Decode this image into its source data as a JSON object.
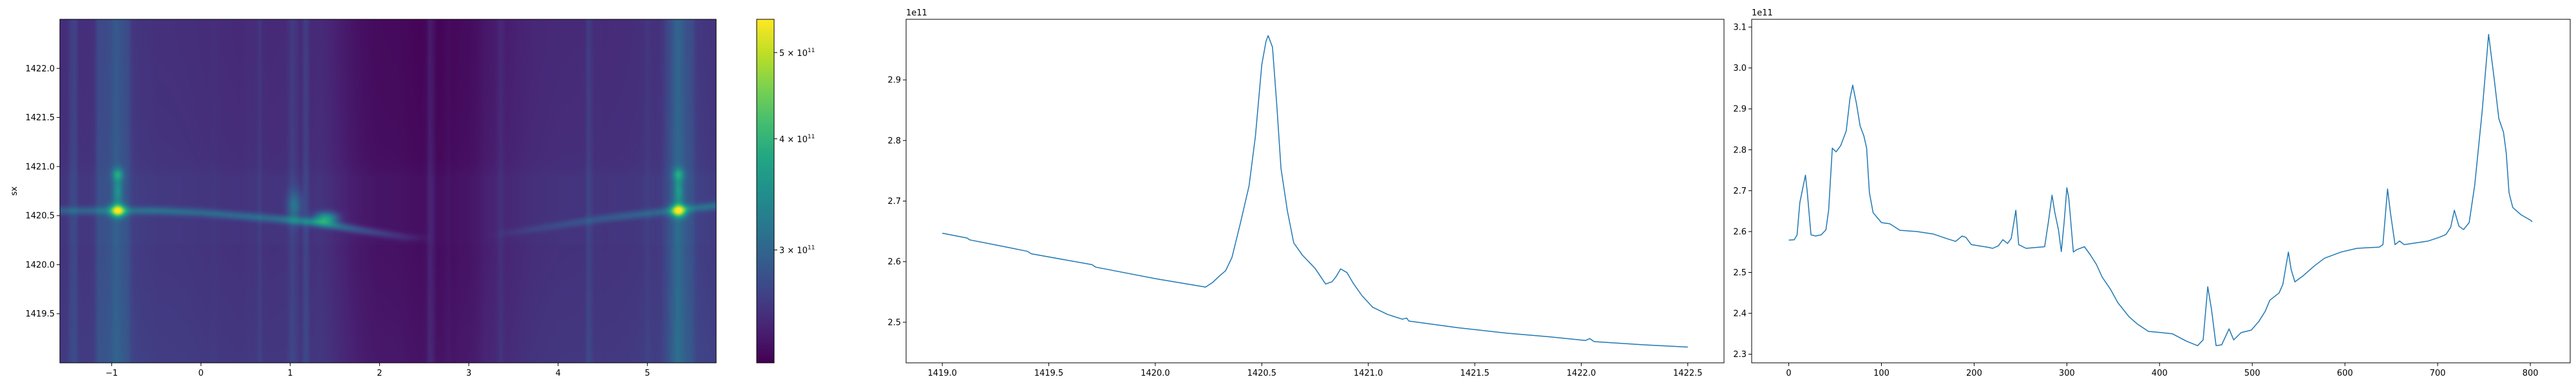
{
  "chart_data": [
    {
      "type": "heatmap",
      "title": "",
      "xlabel": "",
      "ylabel": "sx",
      "xlim": [
        -1.58,
        5.77
      ],
      "ylim": [
        1419.0,
        1422.5
      ],
      "xticks": [
        {
          "value": -1,
          "label": "−1"
        },
        {
          "value": 0,
          "label": "0"
        },
        {
          "value": 1,
          "label": "1"
        },
        {
          "value": 2,
          "label": "2"
        },
        {
          "value": 3,
          "label": "3"
        },
        {
          "value": 4,
          "label": "4"
        },
        {
          "value": 5,
          "label": "5"
        }
      ],
      "yticks": [
        {
          "value": 1419.5,
          "label": "1419.5"
        },
        {
          "value": 1420.0,
          "label": "1420.0"
        },
        {
          "value": 1420.5,
          "label": "1420.5"
        },
        {
          "value": 1421.0,
          "label": "1421.0"
        },
        {
          "value": 1421.5,
          "label": "1421.5"
        },
        {
          "value": 1422.0,
          "label": "1422.0"
        }
      ],
      "colormap": "viridis",
      "color_scale": "log",
      "clim": [
        224000000000.0,
        545000000000.0
      ],
      "colorbar_ticks": [
        {
          "value": 300000000000.0,
          "mantissa": "3 × 10",
          "exponent": "11"
        },
        {
          "value": 400000000000.0,
          "mantissa": "4 × 10",
          "exponent": "11"
        },
        {
          "value": 500000000000.0,
          "mantissa": "5 × 10",
          "exponent": "11"
        }
      ],
      "ridge": [
        {
          "x": -1.58,
          "y": 1420.55,
          "amp": 0.35
        },
        {
          "x": -0.5,
          "y": 1420.55,
          "amp": 0.5
        },
        {
          "x": 0.0,
          "y": 1420.53,
          "amp": 0.45
        },
        {
          "x": 0.8,
          "y": 1420.47,
          "amp": 0.5
        },
        {
          "x": 1.3,
          "y": 1420.43,
          "amp": 0.8
        },
        {
          "x": 1.8,
          "y": 1420.35,
          "amp": 0.4
        },
        {
          "x": 2.3,
          "y": 1420.28,
          "amp": 0.15
        },
        {
          "x": 2.6,
          "y": 1420.27,
          "amp": 0.0
        },
        {
          "x": 3.2,
          "y": 1420.3,
          "amp": 0.0
        },
        {
          "x": 3.5,
          "y": 1420.33,
          "amp": 0.1
        },
        {
          "x": 4.5,
          "y": 1420.47,
          "amp": 0.3
        },
        {
          "x": 5.77,
          "y": 1420.6,
          "amp": 0.5
        }
      ],
      "hotspots": [
        {
          "x": -0.93,
          "y": 1420.55,
          "amp": 2.2,
          "sx": 0.08,
          "sy": 0.06
        },
        {
          "x": 5.35,
          "y": 1420.55,
          "amp": 2.2,
          "sx": 0.08,
          "sy": 0.06
        },
        {
          "x": -0.93,
          "y": 1420.92,
          "amp": 0.8,
          "sx": 0.06,
          "sy": 0.06
        },
        {
          "x": 5.35,
          "y": 1420.92,
          "amp": 0.7,
          "sx": 0.06,
          "sy": 0.06
        },
        {
          "x": -0.93,
          "y": 1420.75,
          "amp": 0.6,
          "sx": 0.05,
          "sy": 0.15
        },
        {
          "x": 5.35,
          "y": 1420.75,
          "amp": 0.6,
          "sx": 0.05,
          "sy": 0.15
        },
        {
          "x": 1.4,
          "y": 1420.47,
          "amp": 1.2,
          "sx": 0.12,
          "sy": 0.06
        },
        {
          "x": 1.05,
          "y": 1420.6,
          "amp": 0.5,
          "sx": 0.08,
          "sy": 0.15
        }
      ]
    },
    {
      "type": "line",
      "title": "",
      "xlabel": "",
      "ylabel": "",
      "offset_text": "1e11",
      "color": "#1f77b4",
      "xlim": [
        1418.83,
        1422.67
      ],
      "ylim": [
        2.433,
        3.0
      ],
      "xticks": [
        {
          "value": 1419.0,
          "label": "1419.0"
        },
        {
          "value": 1419.5,
          "label": "1419.5"
        },
        {
          "value": 1420.0,
          "label": "1420.0"
        },
        {
          "value": 1420.5,
          "label": "1420.5"
        },
        {
          "value": 1421.0,
          "label": "1421.0"
        },
        {
          "value": 1421.5,
          "label": "1421.5"
        },
        {
          "value": 1422.0,
          "label": "1422.0"
        },
        {
          "value": 1422.5,
          "label": "1422.5"
        }
      ],
      "yticks": [
        {
          "value": 2.5,
          "label": "2.5"
        },
        {
          "value": 2.6,
          "label": "2.6"
        },
        {
          "value": 2.7,
          "label": "2.7"
        },
        {
          "value": 2.8,
          "label": "2.8"
        },
        {
          "value": 2.9,
          "label": "2.9"
        }
      ],
      "points": [
        [
          1419.0,
          2.647
        ],
        [
          1419.116,
          2.639
        ],
        [
          1419.128,
          2.636
        ],
        [
          1419.317,
          2.623
        ],
        [
          1419.4,
          2.617
        ],
        [
          1419.418,
          2.613
        ],
        [
          1419.703,
          2.595
        ],
        [
          1419.72,
          2.591
        ],
        [
          1420.0,
          2.572
        ],
        [
          1420.236,
          2.558
        ],
        [
          1420.27,
          2.566
        ],
        [
          1420.3,
          2.576
        ],
        [
          1420.33,
          2.585
        ],
        [
          1420.36,
          2.607
        ],
        [
          1420.4,
          2.664
        ],
        [
          1420.44,
          2.725
        ],
        [
          1420.47,
          2.807
        ],
        [
          1420.5,
          2.925
        ],
        [
          1420.52,
          2.964
        ],
        [
          1420.53,
          2.973
        ],
        [
          1420.55,
          2.954
        ],
        [
          1420.57,
          2.86
        ],
        [
          1420.59,
          2.754
        ],
        [
          1420.62,
          2.684
        ],
        [
          1420.65,
          2.631
        ],
        [
          1420.69,
          2.611
        ],
        [
          1420.75,
          2.589
        ],
        [
          1420.8,
          2.563
        ],
        [
          1420.83,
          2.567
        ],
        [
          1420.85,
          2.576
        ],
        [
          1420.87,
          2.588
        ],
        [
          1420.9,
          2.582
        ],
        [
          1420.93,
          2.564
        ],
        [
          1420.97,
          2.544
        ],
        [
          1421.02,
          2.525
        ],
        [
          1421.09,
          2.513
        ],
        [
          1421.16,
          2.505
        ],
        [
          1421.18,
          2.507
        ],
        [
          1421.19,
          2.502
        ],
        [
          1421.42,
          2.491
        ],
        [
          1421.65,
          2.482
        ],
        [
          1421.85,
          2.476
        ],
        [
          1422.02,
          2.47
        ],
        [
          1422.04,
          2.473
        ],
        [
          1422.06,
          2.468
        ],
        [
          1422.28,
          2.463
        ],
        [
          1422.5,
          2.459
        ]
      ]
    },
    {
      "type": "line",
      "title": "",
      "xlabel": "",
      "ylabel": "",
      "offset_text": "1e11",
      "color": "#1f77b4",
      "xlim": [
        -40,
        843
      ],
      "ylim": [
        2.279,
        3.119
      ],
      "xticks": [
        {
          "value": 0,
          "label": "0"
        },
        {
          "value": 100,
          "label": "100"
        },
        {
          "value": 200,
          "label": "200"
        },
        {
          "value": 300,
          "label": "300"
        },
        {
          "value": 400,
          "label": "400"
        },
        {
          "value": 500,
          "label": "500"
        },
        {
          "value": 600,
          "label": "600"
        },
        {
          "value": 700,
          "label": "700"
        },
        {
          "value": 800,
          "label": "800"
        }
      ],
      "yticks": [
        {
          "value": 2.3,
          "label": "2.3"
        },
        {
          "value": 2.4,
          "label": "2.4"
        },
        {
          "value": 2.5,
          "label": "2.5"
        },
        {
          "value": 2.6,
          "label": "2.6"
        },
        {
          "value": 2.7,
          "label": "2.7"
        },
        {
          "value": 2.8,
          "label": "2.8"
        },
        {
          "value": 2.9,
          "label": "2.9"
        },
        {
          "value": 3.0,
          "label": "3.0"
        },
        {
          "value": 3.1,
          "label": "3.1"
        }
      ],
      "points": [
        [
          0,
          2.579
        ],
        [
          6,
          2.58
        ],
        [
          9,
          2.592
        ],
        [
          12,
          2.671
        ],
        [
          18,
          2.738
        ],
        [
          20,
          2.695
        ],
        [
          24,
          2.592
        ],
        [
          29,
          2.589
        ],
        [
          35,
          2.592
        ],
        [
          40,
          2.604
        ],
        [
          43,
          2.652
        ],
        [
          47,
          2.804
        ],
        [
          51,
          2.795
        ],
        [
          56,
          2.81
        ],
        [
          62,
          2.846
        ],
        [
          66,
          2.925
        ],
        [
          69,
          2.958
        ],
        [
          73,
          2.913
        ],
        [
          77,
          2.858
        ],
        [
          81,
          2.834
        ],
        [
          84,
          2.804
        ],
        [
          87,
          2.695
        ],
        [
          91,
          2.646
        ],
        [
          100,
          2.622
        ],
        [
          109,
          2.619
        ],
        [
          120,
          2.603
        ],
        [
          138,
          2.6
        ],
        [
          156,
          2.594
        ],
        [
          170,
          2.583
        ],
        [
          180,
          2.576
        ],
        [
          187,
          2.589
        ],
        [
          191,
          2.586
        ],
        [
          197,
          2.568
        ],
        [
          214,
          2.562
        ],
        [
          220,
          2.559
        ],
        [
          226,
          2.565
        ],
        [
          231,
          2.58
        ],
        [
          236,
          2.571
        ],
        [
          240,
          2.583
        ],
        [
          245,
          2.652
        ],
        [
          248,
          2.568
        ],
        [
          256,
          2.559
        ],
        [
          276,
          2.563
        ],
        [
          280,
          2.622
        ],
        [
          284,
          2.689
        ],
        [
          287,
          2.647
        ],
        [
          291,
          2.604
        ],
        [
          294,
          2.551
        ],
        [
          297,
          2.622
        ],
        [
          300,
          2.707
        ],
        [
          302,
          2.683
        ],
        [
          307,
          2.55
        ],
        [
          311,
          2.556
        ],
        [
          319,
          2.563
        ],
        [
          325,
          2.544
        ],
        [
          332,
          2.519
        ],
        [
          338,
          2.489
        ],
        [
          347,
          2.459
        ],
        [
          355,
          2.426
        ],
        [
          367,
          2.392
        ],
        [
          376,
          2.374
        ],
        [
          388,
          2.356
        ],
        [
          402,
          2.353
        ],
        [
          414,
          2.35
        ],
        [
          429,
          2.332
        ],
        [
          441,
          2.321
        ],
        [
          447,
          2.335
        ],
        [
          452,
          2.465
        ],
        [
          456,
          2.411
        ],
        [
          461,
          2.321
        ],
        [
          467,
          2.323
        ],
        [
          475,
          2.362
        ],
        [
          480,
          2.335
        ],
        [
          488,
          2.353
        ],
        [
          499,
          2.359
        ],
        [
          507,
          2.38
        ],
        [
          514,
          2.405
        ],
        [
          519,
          2.432
        ],
        [
          529,
          2.45
        ],
        [
          533,
          2.471
        ],
        [
          539,
          2.55
        ],
        [
          542,
          2.507
        ],
        [
          546,
          2.477
        ],
        [
          555,
          2.492
        ],
        [
          567,
          2.516
        ],
        [
          578,
          2.535
        ],
        [
          596,
          2.55
        ],
        [
          613,
          2.559
        ],
        [
          637,
          2.562
        ],
        [
          641,
          2.568
        ],
        [
          646,
          2.704
        ],
        [
          649,
          2.647
        ],
        [
          654,
          2.568
        ],
        [
          659,
          2.577
        ],
        [
          664,
          2.568
        ],
        [
          690,
          2.577
        ],
        [
          702,
          2.586
        ],
        [
          709,
          2.593
        ],
        [
          714,
          2.61
        ],
        [
          718,
          2.652
        ],
        [
          723,
          2.613
        ],
        [
          728,
          2.605
        ],
        [
          734,
          2.622
        ],
        [
          740,
          2.713
        ],
        [
          748,
          2.894
        ],
        [
          755,
          3.082
        ],
        [
          761,
          2.973
        ],
        [
          766,
          2.876
        ],
        [
          771,
          2.843
        ],
        [
          774,
          2.792
        ],
        [
          777,
          2.695
        ],
        [
          781,
          2.659
        ],
        [
          790,
          2.641
        ],
        [
          800,
          2.628
        ],
        [
          802,
          2.624
        ]
      ]
    }
  ]
}
